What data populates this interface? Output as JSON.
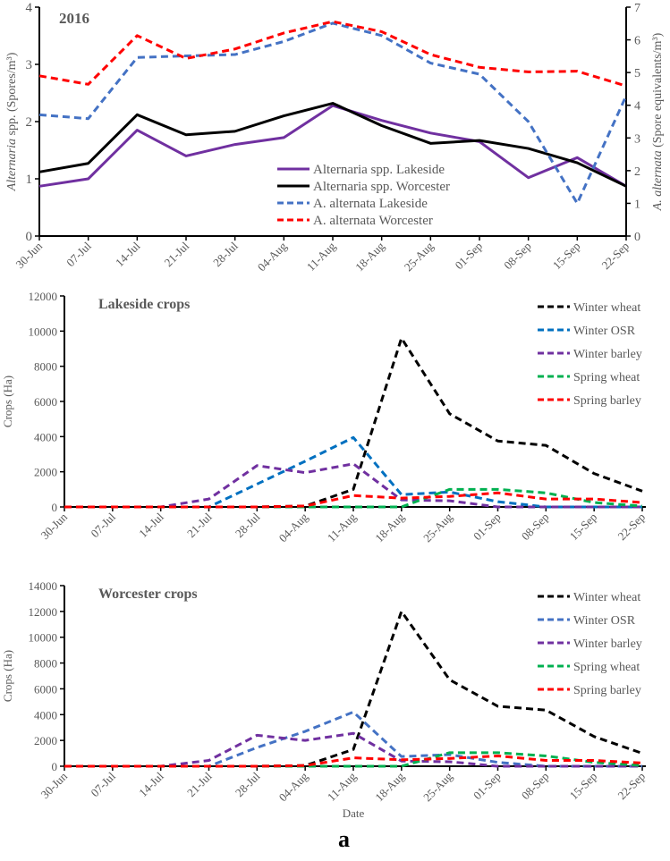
{
  "figure_label": "a",
  "chart_data": [
    {
      "type": "line",
      "title": "2016",
      "categories": [
        "30-Jun",
        "07-Jul",
        "14-Jul",
        "21-Jul",
        "28-Jul",
        "04-Aug",
        "11-Aug",
        "18-Aug",
        "25-Aug",
        "01-Sep",
        "08-Sep",
        "15-Sep",
        "22-Sep"
      ],
      "ylabel_italic": "Alternaria",
      "ylabel_rest": " spp. (Spores/m³)",
      "y2label_italic": "A. alternata",
      "y2label_rest": " (Spore equivalents/m³)",
      "ylim": [
        0,
        4
      ],
      "yticks": [
        "0",
        "1",
        "2",
        "3",
        "4"
      ],
      "y2lim": [
        0,
        7
      ],
      "y2ticks": [
        "0",
        "1",
        "2",
        "3",
        "4",
        "5",
        "6",
        "7"
      ],
      "legend_position": "center-right",
      "series": [
        {
          "name": "Alternaria spp. Lakeside",
          "axis": "left",
          "color": "#7030a0",
          "dashed": false,
          "values": [
            0.87,
            1.0,
            1.85,
            1.4,
            1.6,
            1.72,
            2.28,
            2.02,
            1.8,
            1.65,
            1.02,
            1.37,
            0.87
          ]
        },
        {
          "name": "Alternaria spp. Worcester",
          "axis": "left",
          "color": "#000000",
          "dashed": false,
          "values": [
            1.12,
            1.27,
            2.12,
            1.77,
            1.83,
            2.1,
            2.32,
            1.93,
            1.62,
            1.67,
            1.53,
            1.28,
            0.87
          ]
        },
        {
          "name": "A. alternata Lakeside",
          "axis": "right",
          "color": "#4472c4",
          "dashed": true,
          "values": [
            3.71,
            3.59,
            5.46,
            5.51,
            5.55,
            5.95,
            6.51,
            6.13,
            5.29,
            4.95,
            3.5,
            1.0,
            4.29
          ]
        },
        {
          "name": "A. alternata Worcester",
          "axis": "right",
          "color": "#ff0000",
          "dashed": true,
          "values": [
            4.9,
            4.64,
            6.13,
            5.43,
            5.72,
            6.21,
            6.56,
            6.25,
            5.55,
            5.16,
            5.02,
            5.04,
            4.59
          ]
        }
      ]
    },
    {
      "type": "line",
      "title": "Lakeside crops",
      "categories": [
        "30-Jun",
        "07-Jul",
        "14-Jul",
        "21-Jul",
        "28-Jul",
        "04-Aug",
        "11-Aug",
        "18-Aug",
        "25-Aug",
        "01-Sep",
        "08-Sep",
        "15-Sep",
        "22-Sep"
      ],
      "ylabel": "Crops (Ha)",
      "ylim": [
        0,
        12000
      ],
      "yticks": [
        "0",
        "2000",
        "4000",
        "6000",
        "8000",
        "10000",
        "12000"
      ],
      "legend_position": "top-right",
      "series": [
        {
          "name": "Winter wheat",
          "color": "#000000",
          "values": [
            0,
            0,
            0,
            0,
            0,
            50,
            1000,
            9600,
            5300,
            3750,
            3500,
            1900,
            900
          ]
        },
        {
          "name": "Winter OSR",
          "color": "#0070c0",
          "values": [
            0,
            0,
            0,
            0,
            1300,
            2600,
            3950,
            700,
            850,
            300,
            0,
            0,
            0
          ]
        },
        {
          "name": "Winter barley",
          "color": "#7030a0",
          "values": [
            0,
            0,
            0,
            450,
            2350,
            1950,
            2450,
            400,
            350,
            0,
            0,
            0,
            0
          ]
        },
        {
          "name": "Spring wheat",
          "color": "#00b050",
          "values": [
            0,
            0,
            0,
            0,
            0,
            0,
            0,
            0,
            1000,
            1000,
            800,
            250,
            50
          ]
        },
        {
          "name": "Spring barley",
          "color": "#ff0000",
          "values": [
            0,
            0,
            0,
            0,
            0,
            50,
            650,
            500,
            600,
            800,
            450,
            450,
            250
          ]
        }
      ]
    },
    {
      "type": "line",
      "title": "Worcester crops",
      "categories": [
        "30-Jun",
        "07-Jul",
        "14-Jul",
        "21-Jul",
        "28-Jul",
        "04-Aug",
        "11-Aug",
        "18-Aug",
        "25-Aug",
        "01-Sep",
        "08-Sep",
        "15-Sep",
        "22-Sep"
      ],
      "xlabel": "Date",
      "ylabel": "Crops (Ha)",
      "ylim": [
        0,
        14000
      ],
      "yticks": [
        "0",
        "2000",
        "4000",
        "6000",
        "8000",
        "10000",
        "12000",
        "14000"
      ],
      "legend_position": "top-right",
      "series": [
        {
          "name": "Winter wheat",
          "color": "#000000",
          "values": [
            0,
            0,
            0,
            0,
            0,
            50,
            1300,
            12000,
            6700,
            4650,
            4350,
            2300,
            1000
          ]
        },
        {
          "name": "Winter OSR",
          "color": "#4472c4",
          "values": [
            0,
            0,
            0,
            0,
            1450,
            2700,
            4200,
            750,
            900,
            300,
            0,
            0,
            0
          ]
        },
        {
          "name": "Winter barley",
          "color": "#7030a0",
          "values": [
            0,
            0,
            0,
            450,
            2400,
            2000,
            2550,
            400,
            350,
            0,
            0,
            0,
            0
          ]
        },
        {
          "name": "Spring wheat",
          "color": "#00b050",
          "values": [
            0,
            0,
            0,
            0,
            0,
            0,
            0,
            0,
            1050,
            1050,
            800,
            300,
            50
          ]
        },
        {
          "name": "Spring barley",
          "color": "#ff0000",
          "values": [
            0,
            0,
            0,
            0,
            0,
            50,
            650,
            500,
            600,
            800,
            450,
            450,
            250
          ]
        }
      ]
    }
  ]
}
